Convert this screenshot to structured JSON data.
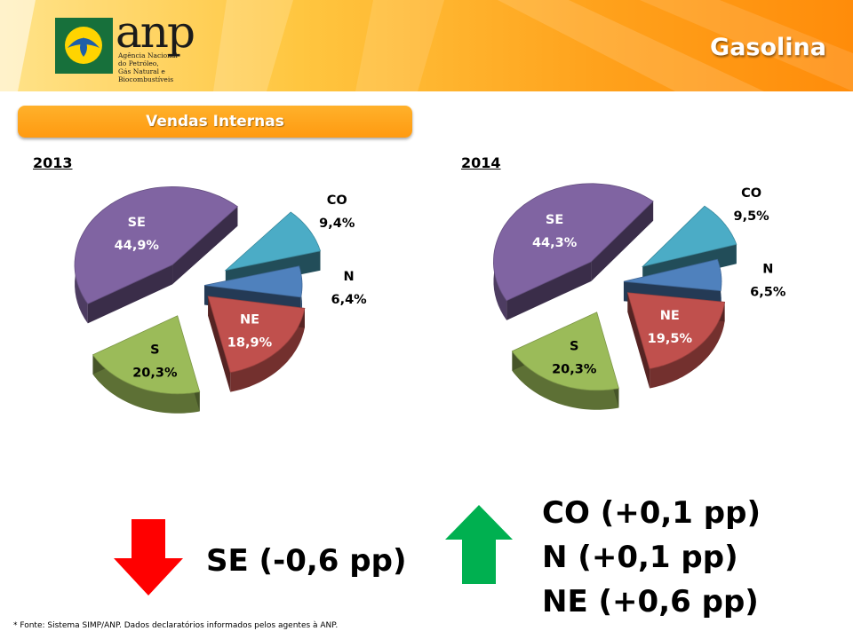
{
  "header": {
    "title": "Gasolina",
    "brand": "anp",
    "brand_subtitle": [
      "Agência Nacional",
      "do Petróleo,",
      "Gás Natural e Biocombustíveis"
    ]
  },
  "section": {
    "tab_label": "Vendas Internas"
  },
  "chart_data": [
    {
      "type": "pie",
      "title": "2013",
      "slices": [
        {
          "name": "SE",
          "value": 44.9,
          "label": "44,9%",
          "color": "#8064a2"
        },
        {
          "name": "CO",
          "value": 9.4,
          "label": "9,4%",
          "color": "#4bacc6"
        },
        {
          "name": "N",
          "value": 6.4,
          "label": "6,4%",
          "color": "#4f81bd"
        },
        {
          "name": "NE",
          "value": 18.9,
          "label": "18,9%",
          "color": "#c0504d"
        },
        {
          "name": "S",
          "value": 20.3,
          "label": "20,3%",
          "color": "#9bbb59"
        }
      ]
    },
    {
      "type": "pie",
      "title": "2014",
      "slices": [
        {
          "name": "SE",
          "value": 44.3,
          "label": "44,3%",
          "color": "#8064a2"
        },
        {
          "name": "CO",
          "value": 9.5,
          "label": "9,5%",
          "color": "#4bacc6"
        },
        {
          "name": "N",
          "value": 6.5,
          "label": "6,5%",
          "color": "#4f81bd"
        },
        {
          "name": "NE",
          "value": 19.5,
          "label": "19,5%",
          "color": "#c0504d"
        },
        {
          "name": "S",
          "value": 20.3,
          "label": "20,3%",
          "color": "#9bbb59"
        }
      ]
    }
  ],
  "changes": {
    "decrease": [
      "SE (-0,6 pp)"
    ],
    "increase": [
      "CO (+0,1 pp)",
      "N (+0,1 pp)",
      "NE (+0,6 pp)"
    ],
    "decrease_color": "#ff0000",
    "increase_color": "#00b050"
  },
  "footnote": "* Fonte: Sistema SIMP/ANP. Dados declaratórios informados pelos agentes à ANP."
}
